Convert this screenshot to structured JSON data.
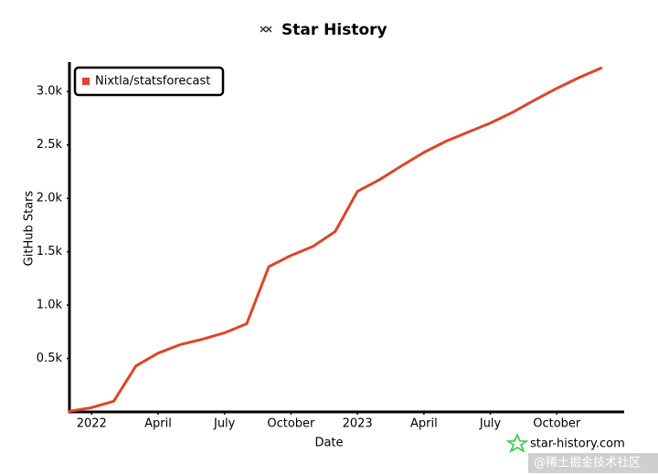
{
  "chart_data": {
    "type": "line",
    "title": "Star History",
    "x_label": "Date",
    "y_label": "GitHub Stars",
    "x": [
      "2021-12",
      "2022-01",
      "2022-02",
      "2022-03",
      "2022-04",
      "2022-05",
      "2022-06",
      "2022-07",
      "2022-08",
      "2022-09",
      "2022-10",
      "2022-11",
      "2022-12",
      "2023-01",
      "2023-02",
      "2023-03",
      "2023-04",
      "2023-05",
      "2023-06",
      "2023-07",
      "2023-08",
      "2023-09",
      "2023-10",
      "2023-11",
      "2023-12"
    ],
    "series": [
      {
        "name": "Nixtla/statsforecast",
        "color": "#dd4528",
        "values": [
          5,
          40,
          100,
          430,
          550,
          630,
          680,
          740,
          825,
          1360,
          1465,
          1550,
          1690,
          2065,
          2175,
          2305,
          2430,
          2535,
          2620,
          2705,
          2805,
          2920,
          3030,
          3130,
          3220
        ]
      }
    ],
    "xlim": [
      "2021-12",
      "2024-01"
    ],
    "xticks": [
      {
        "value": "2022-01",
        "label": "2022"
      },
      {
        "value": "2022-04",
        "label": "April"
      },
      {
        "value": "2022-07",
        "label": "July"
      },
      {
        "value": "2022-10",
        "label": "October"
      },
      {
        "value": "2023-01",
        "label": "2023"
      },
      {
        "value": "2023-04",
        "label": "April"
      },
      {
        "value": "2023-07",
        "label": "July"
      },
      {
        "value": "2023-10",
        "label": "October"
      }
    ],
    "ylim": [
      0,
      3250
    ],
    "yticks": [
      {
        "value": 500,
        "label": "0.5k"
      },
      {
        "value": 1000,
        "label": "1.0k"
      },
      {
        "value": 1500,
        "label": "1.5k"
      },
      {
        "value": 2000,
        "label": "2.0k"
      },
      {
        "value": 2500,
        "label": "2.5k"
      },
      {
        "value": 3000,
        "label": "3.0k"
      }
    ],
    "grid": false,
    "legend": "upper left",
    "watermark": "star-history.com",
    "credit": "@稀土掘金技术社区"
  }
}
